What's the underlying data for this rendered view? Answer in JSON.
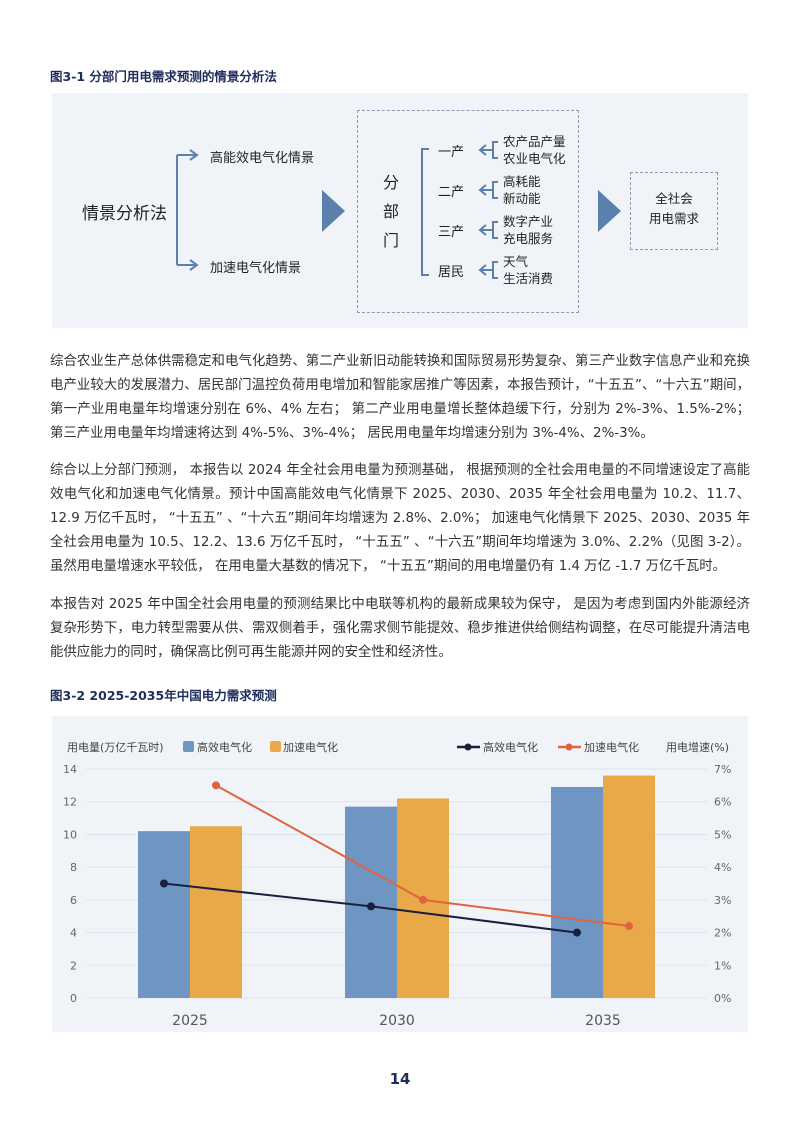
{
  "figure1": {
    "title": "图3-1 分部门用电需求预测的情景分析法",
    "root": "情景分析法",
    "scenarios": [
      "高能效电气化情景",
      "加速电气化情景"
    ],
    "sector_group": [
      "分",
      "部",
      "门"
    ],
    "sectors": [
      {
        "name": "一产",
        "factors": [
          "农产品产量",
          "农业电气化"
        ]
      },
      {
        "name": "二产",
        "factors": [
          "高耗能",
          "新动能"
        ]
      },
      {
        "name": "三产",
        "factors": [
          "数字产业",
          "充电服务"
        ]
      },
      {
        "name": "居民",
        "factors": [
          "天气",
          "生活消费"
        ]
      }
    ],
    "result": [
      "全社会",
      "用电需求"
    ],
    "accent": "#5b80ab"
  },
  "paragraphs": [
    "综合农业生产总体供需稳定和电气化趋势、第二产业新旧动能转换和国际贸易形势复杂、第三产业数字信息产业和充换电产业较大的发展潜力、居民部门温控负荷用电增加和智能家居推广等因素，本报告预计，“十五五”、“十六五”期间，第一产业用电量年均增速分别在 6%、4% 左右； 第二产业用电量增长整体趋缓下行，分别为 2%-3%、1.5%-2%； 第三产业用电量年均增速将达到 4%-5%、3%-4%； 居民用电量年均增速分别为 3%-4%、2%-3%。",
    "综合以上分部门预测， 本报告以 2024 年全社会用电量为预测基础， 根据预测的全社会用电量的不同增速设定了高能效电气化和加速电气化情景。预计中国高能效电气化情景下 2025、2030、2035 年全社会用电量为 10.2、11.7、12.9 万亿千瓦时， “十五五” 、“十六五”期间年均增速为 2.8%、2.0%； 加速电气化情景下 2025、2030、2035 年全社会用电量为 10.5、12.2、13.6 万亿千瓦时， “十五五” 、“十六五”期间年均增速为 3.0%、2.2%（见图 3-2）。虽然用电量增速水平较低， 在用电量大基数的情况下， “十五五”期间的用电增量仍有 1.4 万亿 -1.7 万亿千瓦时。",
    "本报告对 2025 年中国全社会用电量的预测结果比中电联等机构的最新成果较为保守， 是因为考虑到国内外能源经济复杂形势下，电力转型需要从供、需双侧着手，强化需求侧节能提效、稳步推进供给侧结构调整，在尽可能提升清洁电能供应能力的同时，确保高比例可再生能源并网的安全性和经济性。"
  ],
  "figure2_title": "图3-2 2025-2035年中国电力需求预测",
  "chart_data": {
    "type": "bar+line",
    "categories": [
      "2025",
      "2030",
      "2035"
    ],
    "ylabel": "用电量(万亿千瓦时)",
    "y2label": "用电增速(%)",
    "ylim": [
      0,
      14
    ],
    "yticks": [
      "0",
      "2",
      "4",
      "6",
      "8",
      "10",
      "12",
      "14"
    ],
    "y2lim": [
      0,
      7
    ],
    "y2ticks": [
      "0%",
      "1%",
      "2%",
      "3%",
      "4%",
      "5%",
      "6%",
      "7%"
    ],
    "grid": true,
    "legend_position": "top",
    "bar_series": [
      {
        "name": "高效电气化",
        "values": [
          10.2,
          11.7,
          12.9
        ],
        "color": "#6f96c2"
      },
      {
        "name": "加速电气化",
        "values": [
          10.5,
          12.2,
          13.6
        ],
        "color": "#eaa948"
      }
    ],
    "line_series": [
      {
        "name": "高效电气化",
        "values": [
          3.5,
          2.8,
          2.0
        ],
        "color": "#1a1f3f"
      },
      {
        "name": "加速电气化",
        "values": [
          6.5,
          3.0,
          2.2
        ],
        "color": "#e0643e"
      }
    ]
  },
  "page_number": "14"
}
